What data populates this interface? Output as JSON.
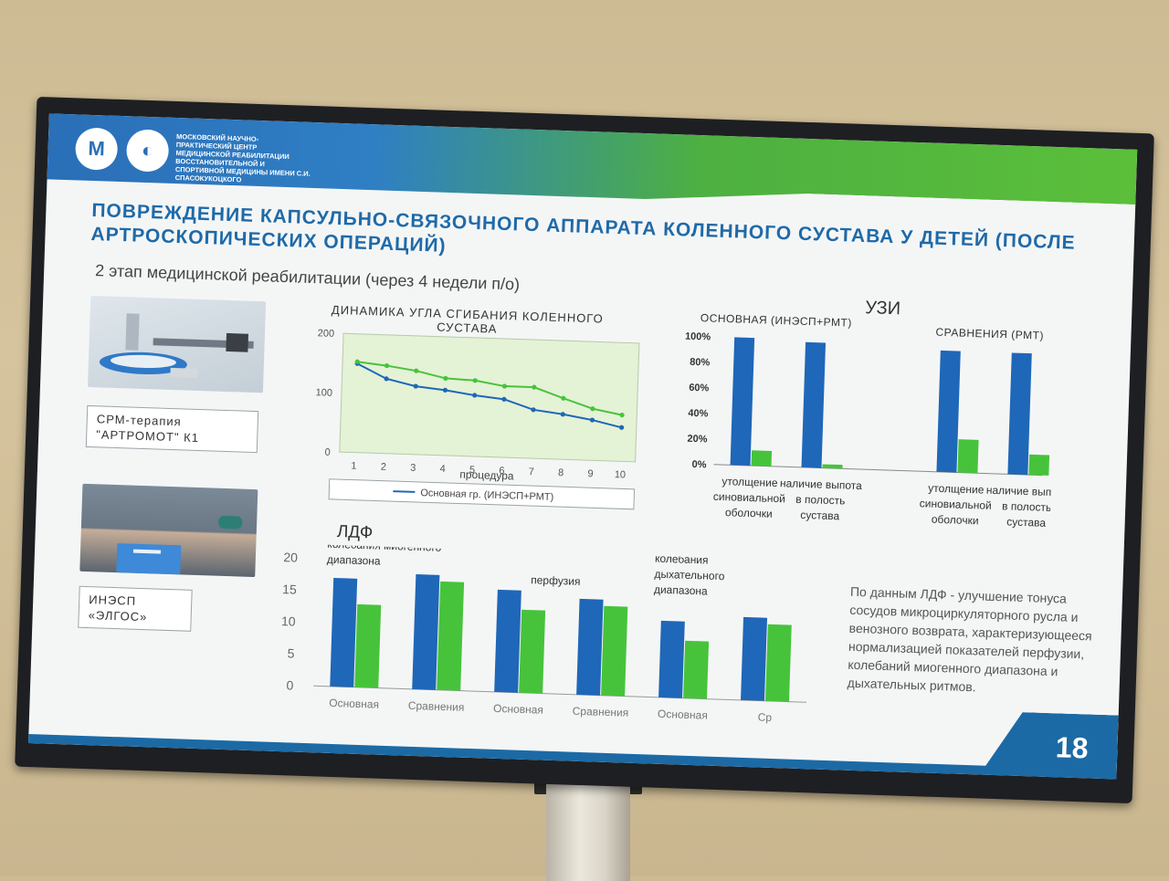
{
  "header": {
    "org_name": "МОСКОВСКИЙ НАУЧНО-ПРАКТИЧЕСКИЙ ЦЕНТР МЕДИЦИНСКОЙ РЕАБИЛИТАЦИИ ВОССТАНОВИТЕЛЬНОЙ И СПОРТИВНОЙ МЕДИЦИНЫ ИМЕНИ С.И. СПАСОКУКОЦКОГО"
  },
  "slide": {
    "title": "ПОВРЕЖДЕНИЕ КАПСУЛЬНО-СВЯЗОЧНОГО АППАРАТА КОЛЕННОГО СУСТАВА У ДЕТЕЙ (ПОСЛЕ АРТРОСКОПИЧЕСКИХ ОПЕРАЦИЙ)",
    "subtitle": "2 этап медицинской реабилитации (через 4 недели п/о)",
    "uzi_title": "УЗИ",
    "ldf_title": "ЛДФ",
    "cpm_label": "СРМ-терапия \"АРТРОМОТ\" К1",
    "inesp_label": "ИНЭСП «ЭЛГОС»",
    "note": "По данным ЛДФ - улучшение тонуса сосудов микроциркуляторного русла и венозного возврата, характеризующееся нормализацией показателей перфузии, колебаний миогенного диапазона и дыхательных ритмов.",
    "page_number": "18"
  },
  "colors": {
    "blue": "#1f67b8",
    "green": "#47c33b",
    "title": "#1f6aa8"
  },
  "chart_data": [
    {
      "type": "line",
      "title": "ДИНАМИКА УГЛА СГИБАНИЯ КОЛЕННОГО СУСТАВА",
      "xlabel": "процедура",
      "x": [
        1,
        2,
        3,
        4,
        5,
        6,
        7,
        8,
        9,
        10
      ],
      "ylim": [
        0,
        200
      ],
      "yticks": [
        0,
        100,
        200
      ],
      "series": [
        {
          "name": "Основная гр. (ИНЭСП+РМТ)",
          "color": "#1f67b8",
          "values": [
            150,
            126,
            115,
            110,
            103,
            98,
            82,
            76,
            68,
            57
          ]
        },
        {
          "color": "#47c33b",
          "values": [
            153,
            148,
            141,
            130,
            128,
            120,
            120,
            103,
            87,
            78
          ]
        }
      ],
      "legend": "bottom"
    },
    {
      "type": "bar",
      "group_labels": [
        "ОСНОВНАЯ (ИНЭСП+РМТ)",
        "СРАВНЕНИЯ (РМТ)"
      ],
      "categories": [
        "утолщение синовиальной оболочки",
        "наличие выпота в полость сустава",
        "утолщение синовиальной оболочки",
        "наличие выпота в полость сустава"
      ],
      "ylim": [
        0,
        100
      ],
      "yticks": [
        "0%",
        "20%",
        "40%",
        "60%",
        "80%",
        "100%"
      ],
      "series": [
        {
          "color": "#1f67b8",
          "values": [
            100,
            98,
            95,
            95
          ]
        },
        {
          "color": "#47c33b",
          "values": [
            12,
            3,
            26,
            16
          ]
        }
      ]
    },
    {
      "type": "bar",
      "categories": [
        "Основная",
        "Сравнения",
        "Основная",
        "Сравнения",
        "Основная",
        "Ср"
      ],
      "group_labels": [
        "колебания миогенного диапазона",
        "перфузия",
        "колебания дыхательного диапазона"
      ],
      "ylim": [
        0,
        20
      ],
      "yticks": [
        0,
        5,
        10,
        15,
        20
      ],
      "series": [
        {
          "color": "#1f67b8",
          "values": [
            17,
            18,
            16,
            15,
            12,
            13
          ]
        },
        {
          "color": "#47c33b",
          "values": [
            13,
            17,
            13,
            14,
            9,
            12
          ]
        }
      ]
    }
  ]
}
